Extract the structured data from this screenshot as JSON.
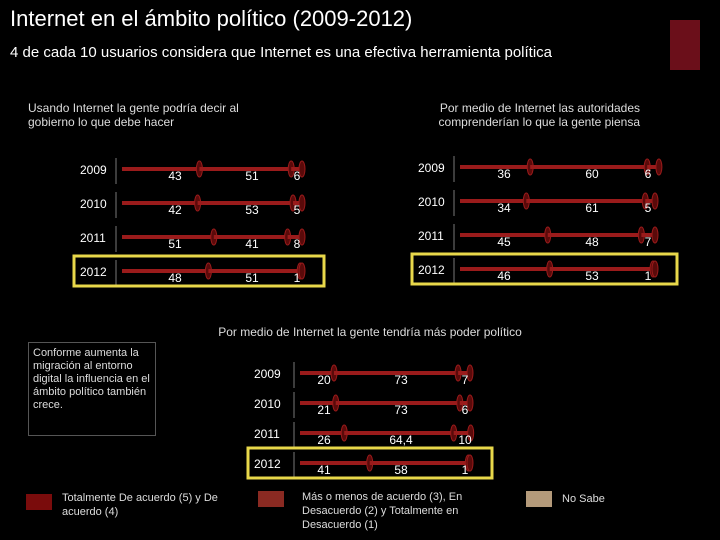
{
  "header": {
    "title": "Internet en el ámbito político (2009-2012)",
    "subtitle": "4 de cada 10 usuarios considera que Internet es una efectiva herramienta política"
  },
  "callout": "Conforme aumenta la migración al entorno digital la influencia en el ámbito político también crece.",
  "legend": [
    {
      "label": "Totalmente De acuerdo (5) y De acuerdo (4)",
      "color": "#7a0c0c"
    },
    {
      "label": "Más o menos de acuerdo (3), En Desacuerdo (2) y Totalmente en Desacuerdo (1)",
      "color": "#8a2a22"
    },
    {
      "label": "No Sabe",
      "color": "#b49a7a"
    }
  ],
  "colors": {
    "bar": "#9a1b1b",
    "bar_dark": "#5a0a0a",
    "highlight": "#e8d84a",
    "accent": "#6b0f1a"
  },
  "highlight_year": "2012",
  "chart_data": [
    {
      "type": "bar",
      "stacked": true,
      "orientation": "horizontal",
      "title": "Usando Internet la gente podría decir al gobierno lo que debe hacer",
      "categories": [
        "2009",
        "2010",
        "2011",
        "2012"
      ],
      "series": [
        {
          "name": "Totalmente De acuerdo (5) y De acuerdo (4)",
          "values": [
            43,
            42,
            51,
            48
          ]
        },
        {
          "name": "Más o menos de acuerdo (3), En Desacuerdo (2) y Totalmente en Desacuerdo (1)",
          "values": [
            51,
            53,
            41,
            51
          ]
        },
        {
          "name": "No Sabe",
          "values": [
            6,
            5,
            8,
            1
          ]
        }
      ]
    },
    {
      "type": "bar",
      "stacked": true,
      "orientation": "horizontal",
      "title": "Por medio de Internet las autoridades comprenderían lo que la gente piensa",
      "categories": [
        "2009",
        "2010",
        "2011",
        "2012"
      ],
      "series": [
        {
          "name": "Totalmente De acuerdo (5) y De acuerdo (4)",
          "values": [
            36,
            34,
            45,
            46
          ]
        },
        {
          "name": "Más o menos de acuerdo (3), En Desacuerdo (2) y Totalmente en Desacuerdo (1)",
          "values": [
            60,
            61,
            48,
            53
          ]
        },
        {
          "name": "No Sabe",
          "values": [
            6,
            5,
            7,
            1
          ]
        }
      ]
    },
    {
      "type": "bar",
      "stacked": true,
      "orientation": "horizontal",
      "title": "Por medio de Internet la gente tendría más poder político",
      "categories": [
        "2009",
        "2010",
        "2011",
        "2012"
      ],
      "series": [
        {
          "name": "Totalmente De acuerdo (5) y De acuerdo (4)",
          "values": [
            "20",
            "21",
            "26",
            "41"
          ]
        },
        {
          "name": "Más o menos de acuerdo (3), En Desacuerdo (2) y Totalmente en Desacuerdo (1)",
          "values": [
            "73",
            "73",
            "64,4",
            "58"
          ]
        },
        {
          "name": "No Sabe",
          "values": [
            "7",
            "6",
            "10",
            "1"
          ]
        }
      ]
    }
  ]
}
